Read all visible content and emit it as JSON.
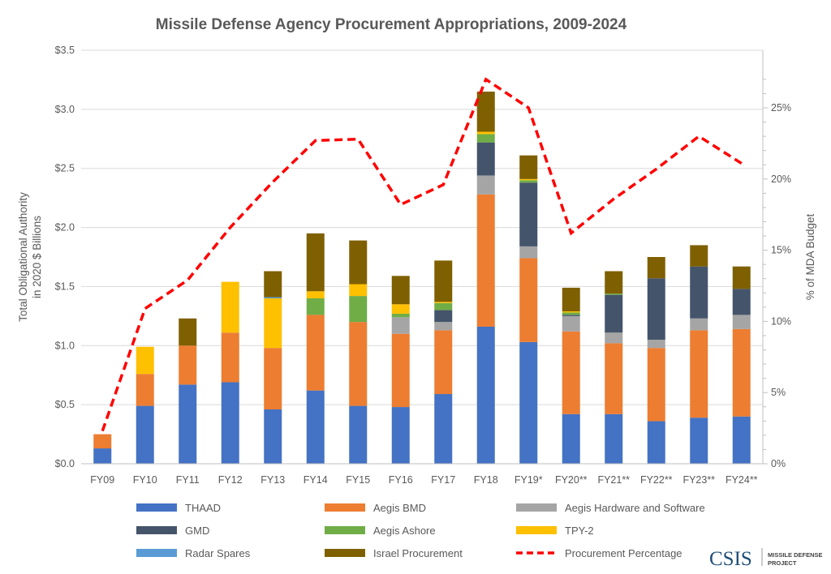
{
  "chart_data": {
    "type": "bar",
    "stacked": true,
    "title": "Missile Defense Agency Procurement Appropriations, 2009-2024",
    "ylabel": "Total Obligational Authority in 2020 $ Billions",
    "ylabel_lines": [
      "Total Obligational Authority",
      "in 2020 $ Billions"
    ],
    "y2label": "% of MDA Budget",
    "ylim": [
      0,
      3.5
    ],
    "y2lim": [
      0,
      29
    ],
    "yticks": [
      "$0.0",
      "$0.5",
      "$1.0",
      "$1.5",
      "$2.0",
      "$2.5",
      "$3.0",
      "$3.5"
    ],
    "y2ticks": [
      "0%",
      "5%",
      "10%",
      "15%",
      "20%",
      "25%"
    ],
    "grid": true,
    "legend_position": "bottom",
    "categories": [
      "FY09",
      "FY10",
      "FY11",
      "FY12",
      "FY13",
      "FY14",
      "FY15",
      "FY16",
      "FY17",
      "FY18",
      "FY19*",
      "FY20**",
      "FY21**",
      "FY22**",
      "FY23**",
      "FY24**"
    ],
    "series": [
      {
        "name": "THAAD",
        "color": "#4472C4",
        "values": [
          0.13,
          0.49,
          0.67,
          0.69,
          0.46,
          0.62,
          0.49,
          0.48,
          0.59,
          1.16,
          1.03,
          0.42,
          0.42,
          0.36,
          0.39,
          0.4
        ]
      },
      {
        "name": "Aegis BMD",
        "color": "#ED7D31",
        "values": [
          0.12,
          0.27,
          0.33,
          0.42,
          0.52,
          0.64,
          0.71,
          0.62,
          0.54,
          1.12,
          0.71,
          0.7,
          0.6,
          0.62,
          0.74,
          0.74
        ]
      },
      {
        "name": "Aegis Hardware and Software",
        "color": "#A5A5A5",
        "values": [
          0,
          0,
          0,
          0,
          0,
          0,
          0,
          0.14,
          0.07,
          0.16,
          0.1,
          0.13,
          0.09,
          0.07,
          0.1,
          0.12
        ]
      },
      {
        "name": "GMD",
        "color": "#44546A",
        "values": [
          0,
          0,
          0,
          0,
          0,
          0,
          0,
          0,
          0.1,
          0.28,
          0.54,
          0.01,
          0.32,
          0.52,
          0.44,
          0.22
        ]
      },
      {
        "name": "Aegis Ashore",
        "color": "#70AD47",
        "values": [
          0,
          0,
          0,
          0,
          0,
          0.14,
          0.22,
          0.03,
          0.06,
          0.07,
          0.02,
          0.02,
          0.01,
          0,
          0,
          0
        ]
      },
      {
        "name": "TPY-2",
        "color": "#FFC000",
        "values": [
          0,
          0.23,
          0,
          0.43,
          0.42,
          0.06,
          0.1,
          0.08,
          0.01,
          0.02,
          0.01,
          0.01,
          0,
          0,
          0,
          0
        ]
      },
      {
        "name": "Radar Spares",
        "color": "#5B9BD5",
        "values": [
          0,
          0,
          0,
          0,
          0.01,
          0,
          0,
          0,
          0,
          0,
          0,
          0,
          0,
          0,
          0,
          0
        ]
      },
      {
        "name": "Israel Procurement",
        "color": "#7F6000",
        "values": [
          0,
          0,
          0.23,
          0,
          0.22,
          0.49,
          0.37,
          0.24,
          0.35,
          0.34,
          0.2,
          0.2,
          0.19,
          0.18,
          0.18,
          0.19
        ]
      }
    ],
    "line_series": {
      "name": "Procurement Percentage",
      "color": "#FF0000",
      "axis": "right",
      "style": "dashed",
      "values": [
        2.3,
        10.9,
        12.9,
        16.6,
        19.8,
        22.7,
        22.8,
        18.2,
        19.6,
        27.0,
        25.0,
        16.2,
        18.6,
        20.7,
        23.0,
        21.1
      ]
    }
  },
  "logo": {
    "name": "CSIS",
    "subtitle_lines": [
      "MISSILE DEFENSE",
      "PROJECT"
    ]
  }
}
